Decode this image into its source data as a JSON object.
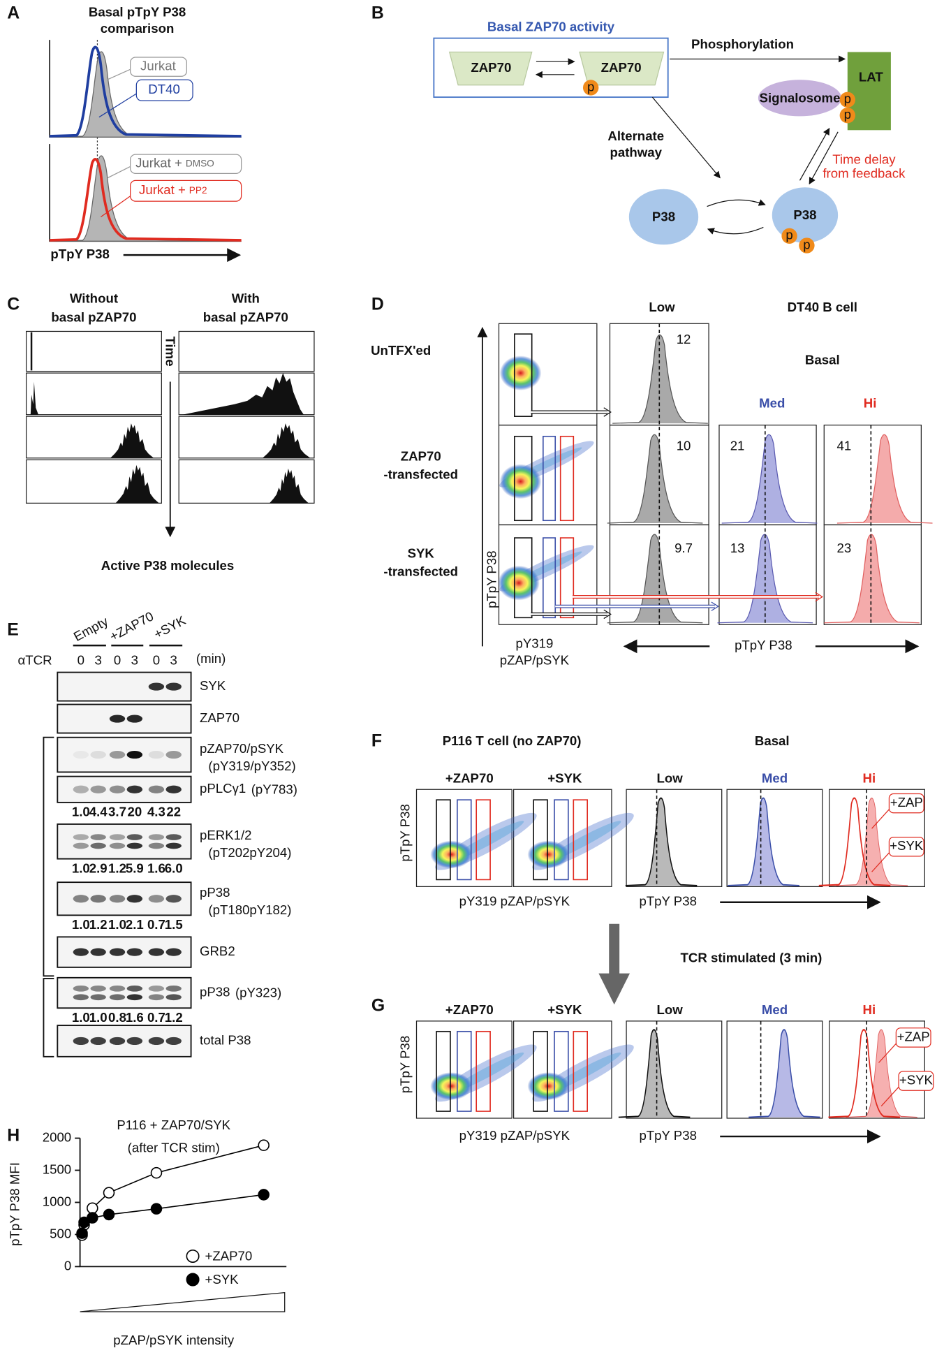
{
  "panel_a": {
    "label": "A",
    "title": [
      "Basal pTpY P38",
      "comparison"
    ],
    "legend_top": [
      "Jurkat",
      "DT40"
    ],
    "legend_bottom": [
      [
        "Jurkat +",
        "DMSO"
      ],
      [
        "Jurkat +",
        "PP2"
      ]
    ],
    "x_label": "pTpY P38"
  },
  "panel_b": {
    "label": "B",
    "box_title": "Basal ZAP70 activity",
    "kinase": [
      "ZAP70",
      "ZAP70"
    ],
    "zap70_p": "p",
    "phosphorylation": "Phosphorylation",
    "lat": "LAT",
    "signalosome": "Signalosome",
    "lat_p": [
      "p",
      "p"
    ],
    "alternate": [
      "Alternate",
      "pathway"
    ],
    "feedback": [
      "Time delay",
      "from feedback"
    ],
    "p38": [
      "P38",
      "P38"
    ],
    "p38_p": [
      "p",
      "p"
    ]
  },
  "panel_c": {
    "label": "C",
    "columns": [
      [
        "Without",
        "basal pZAP70"
      ],
      [
        "With",
        "basal pZAP70"
      ]
    ],
    "time": "Time",
    "x_label": "Active P38 molecules"
  },
  "panel_d": {
    "label": "D",
    "low": "Low",
    "title": "DT40 B cell",
    "basal": "Basal",
    "med": "Med",
    "hi": "Hi",
    "rows": [
      [
        "UnTFX'ed"
      ],
      [
        "ZAP70",
        "-transfected"
      ],
      [
        "SYK",
        "-transfected"
      ]
    ],
    "values": [
      [
        "12"
      ],
      [
        "10",
        "21",
        "41"
      ],
      [
        "9.7",
        "13",
        "23"
      ]
    ],
    "y_label": "pTpY P38",
    "x_label": [
      "pY319",
      "pZAP/pSYK"
    ],
    "hist_label": "pTpY P38"
  },
  "panel_e": {
    "label": "E",
    "groups": [
      "Empty",
      "+ZAP70",
      "+SYK"
    ],
    "stim": "αTCR",
    "times": [
      "0",
      "3",
      "0",
      "3",
      "0",
      "3"
    ],
    "unit": "(min)",
    "blots": [
      {
        "name": "SYK"
      },
      {
        "name": "ZAP70"
      },
      {
        "name": "pZAP70/pSYK",
        "site": "(pY319/pY352)"
      },
      {
        "name": "pPLCγ1",
        "site": "(pY783)",
        "quant": [
          "1.0",
          "4.4",
          "3.7",
          "20",
          "4.3",
          "22"
        ]
      },
      {
        "name": "pERK1/2",
        "site": "(pT202pY204)",
        "quant": [
          "1.0",
          "2.9",
          "1.2",
          "5.9",
          "1.6",
          "6.0"
        ]
      },
      {
        "name": "pP38",
        "site": "(pT180pY182)",
        "quant": [
          "1.0",
          "1.2",
          "1.0",
          "2.1",
          "0.7",
          "1.5"
        ]
      },
      {
        "name": "GRB2"
      },
      {
        "name": "pP38",
        "site": "(pY323)",
        "quant": [
          "1.0",
          "1.0",
          "0.8",
          "1.6",
          "0.7",
          "1.2"
        ]
      },
      {
        "name": "total P38"
      }
    ]
  },
  "panel_f": {
    "label": "F",
    "title": "P116 T cell (no ZAP70)",
    "basal": "Basal",
    "scatter": [
      "+ZAP70",
      "+SYK"
    ],
    "hist": [
      "Low",
      "Med",
      "Hi"
    ],
    "overlay": [
      "+ZAP",
      "+SYK"
    ],
    "y_label": "pTpY P38",
    "x_label": "pY319 pZAP/pSYK",
    "hist_label": "pTpY P38"
  },
  "transition": "TCR stimulated (3 min)",
  "panel_g": {
    "label": "G",
    "scatter": [
      "+ZAP70",
      "+SYK"
    ],
    "hist": [
      "Low",
      "Med",
      "Hi"
    ],
    "overlay": [
      "+ZAP",
      "+SYK"
    ],
    "y_label": "pTpY P38",
    "x_label": "pY319 pZAP/pSYK",
    "hist_label": "pTpY P38"
  },
  "panel_h": {
    "label": "H",
    "type": "line",
    "title": [
      "P116 + ZAP70/SYK",
      "(after TCR stim)"
    ],
    "y_label": "pTpY P38 MFI",
    "x_label": "pZAP/pSYK intensity",
    "xlim": [
      0,
      100
    ],
    "ylim": [
      0,
      2000
    ],
    "yticks": [
      0,
      500,
      1000,
      1500,
      2000
    ],
    "series": [
      {
        "name": "+ZAP70",
        "marker_fill": "#ffffff",
        "color": "#000000",
        "x": [
          1,
          2,
          6,
          14,
          37,
          89
        ],
        "values": [
          490,
          650,
          910,
          1150,
          1460,
          1890
        ]
      },
      {
        "name": "+SYK",
        "marker_fill": "#000000",
        "color": "#000000",
        "x": [
          1,
          2,
          6,
          14,
          37,
          89
        ],
        "values": [
          520,
          690,
          760,
          810,
          900,
          1120
        ]
      }
    ]
  }
}
